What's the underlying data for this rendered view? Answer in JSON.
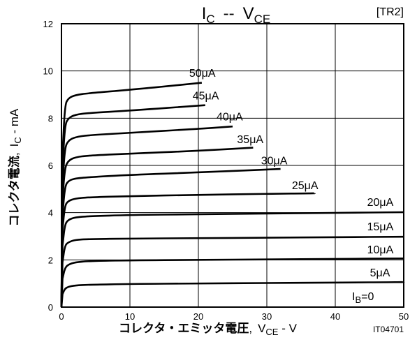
{
  "chart_data": {
    "type": "line",
    "title": {
      "main": "I",
      "main_sub": "C",
      "sep": "--",
      "main2": "V",
      "main2_sub": "CE"
    },
    "ref": "[TR2]",
    "xlabel": {
      "jp": "コレクタ・エミッタ電圧",
      "comma": ",",
      "v": "V",
      "sub": "CE",
      "unit": " - V"
    },
    "ylabel": {
      "jp": "コレクタ電流",
      "comma": ",",
      "i": "I",
      "sub": "C",
      "unit": " - mA"
    },
    "figure_code": "IT04701",
    "xlim": [
      0,
      50
    ],
    "ylim": [
      0,
      12
    ],
    "x_ticks": [
      "0",
      "10",
      "20",
      "30",
      "40",
      "50"
    ],
    "y_ticks": [
      "0",
      "2",
      "4",
      "6",
      "8",
      "10",
      "12"
    ],
    "grid": true,
    "ib_label": {
      "prefix": "I",
      "sub": "B",
      "suffix": "=0"
    },
    "series": [
      {
        "name": "5μA",
        "x": [
          0,
          0.15,
          0.5,
          1.0,
          2.0,
          4.0,
          10,
          20,
          30,
          40,
          50
        ],
        "y": [
          0,
          0.55,
          0.78,
          0.86,
          0.92,
          0.95,
          0.98,
          1.0,
          1.02,
          1.04,
          1.06
        ]
      },
      {
        "name": "10μA",
        "x": [
          0,
          0.15,
          0.5,
          1.0,
          2.0,
          4.0,
          10,
          20,
          30,
          40,
          50
        ],
        "y": [
          0,
          1.2,
          1.65,
          1.8,
          1.9,
          1.95,
          1.98,
          2.0,
          2.02,
          2.04,
          2.06
        ]
      },
      {
        "name": "15μA",
        "x": [
          0,
          0.15,
          0.5,
          1.0,
          2.0,
          4.0,
          10,
          20,
          30,
          40,
          50
        ],
        "y": [
          0,
          1.9,
          2.6,
          2.75,
          2.85,
          2.88,
          2.9,
          2.92,
          2.94,
          2.96,
          2.98
        ]
      },
      {
        "name": "20μA",
        "x": [
          0,
          0.15,
          0.5,
          1.0,
          2.0,
          4.0,
          10,
          20,
          30,
          40,
          50
        ],
        "y": [
          0,
          2.6,
          3.5,
          3.7,
          3.8,
          3.85,
          3.9,
          3.93,
          3.96,
          3.99,
          4.02
        ]
      },
      {
        "name": "25μA",
        "x": [
          0,
          0.15,
          0.5,
          1.0,
          2.0,
          4.0,
          10,
          20,
          30,
          37
        ],
        "y": [
          0,
          3.3,
          4.3,
          4.5,
          4.6,
          4.65,
          4.7,
          4.75,
          4.8,
          4.82
        ]
      },
      {
        "name": "30μA",
        "x": [
          0,
          0.15,
          0.5,
          1.0,
          2.0,
          4.0,
          10,
          20,
          32
        ],
        "y": [
          0,
          3.9,
          5.1,
          5.35,
          5.45,
          5.5,
          5.6,
          5.7,
          5.85
        ]
      },
      {
        "name": "35μA",
        "x": [
          0,
          0.15,
          0.5,
          1.0,
          2.0,
          4.0,
          10,
          20,
          28
        ],
        "y": [
          0,
          4.6,
          5.9,
          6.2,
          6.35,
          6.42,
          6.5,
          6.62,
          6.75
        ]
      },
      {
        "name": "40μA",
        "x": [
          0,
          0.15,
          0.5,
          1.0,
          2.0,
          4.0,
          10,
          20,
          25
        ],
        "y": [
          0,
          5.2,
          6.75,
          7.05,
          7.2,
          7.28,
          7.38,
          7.55,
          7.65
        ]
      },
      {
        "name": "45μA",
        "x": [
          0,
          0.15,
          0.5,
          1.0,
          2.0,
          4.0,
          10,
          21
        ],
        "y": [
          0,
          5.9,
          7.7,
          8.0,
          8.15,
          8.22,
          8.32,
          8.55
        ]
      },
      {
        "name": "50μA",
        "x": [
          0,
          0.15,
          0.5,
          1.0,
          2.0,
          4.0,
          10,
          20.5
        ],
        "y": [
          0,
          6.5,
          8.55,
          8.85,
          8.98,
          9.06,
          9.2,
          9.5
        ]
      }
    ]
  }
}
